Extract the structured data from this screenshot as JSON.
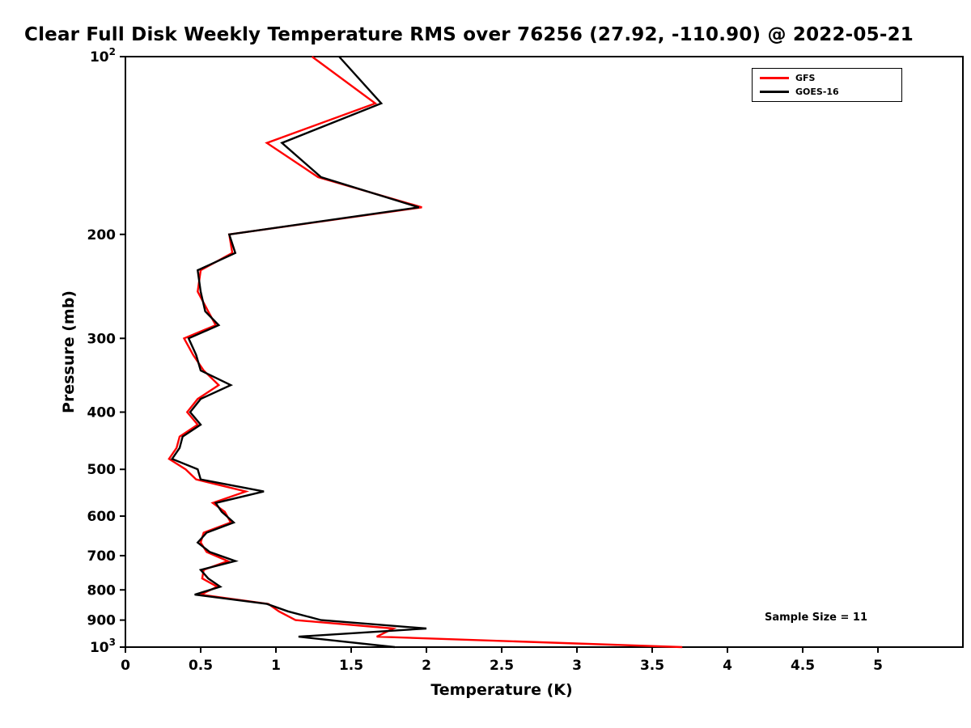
{
  "chart_data": {
    "type": "line",
    "title": "Clear Full Disk Weekly Temperature RMS over 76256 (27.92, -110.90) @ 2022-05-21",
    "xlabel": "Temperature (K)",
    "ylabel": "Pressure (mb)",
    "xlim": [
      0,
      5.56
    ],
    "x_ticks": [
      0,
      0.5,
      1,
      1.5,
      2,
      2.5,
      3,
      3.5,
      4,
      4.5,
      5
    ],
    "yscale": "log",
    "y_axis_reversed": true,
    "ylim": [
      100,
      1000
    ],
    "y_ticks": [
      100,
      200,
      300,
      400,
      500,
      600,
      700,
      800,
      900,
      1000
    ],
    "y_tick_labels": [
      "10^2",
      "200",
      "300",
      "400",
      "500",
      "600",
      "700",
      "800",
      "900",
      "10^3"
    ],
    "grid": false,
    "legend_position": "top-right",
    "annotation": "Sample Size = 11",
    "pressure_mb": [
      100,
      120,
      140,
      160,
      180,
      200,
      215,
      230,
      250,
      270,
      285,
      300,
      320,
      340,
      360,
      380,
      400,
      420,
      440,
      460,
      480,
      500,
      520,
      545,
      570,
      590,
      615,
      640,
      665,
      690,
      715,
      740,
      765,
      790,
      815,
      845,
      870,
      900,
      930,
      960,
      1000
    ],
    "series": [
      {
        "name": "GFS",
        "color": "#ff0000",
        "values": [
          1.24,
          1.66,
          0.94,
          1.28,
          1.97,
          0.69,
          0.71,
          0.5,
          0.48,
          0.55,
          0.6,
          0.39,
          0.45,
          0.52,
          0.62,
          0.48,
          0.41,
          0.48,
          0.36,
          0.34,
          0.29,
          0.4,
          0.47,
          0.8,
          0.58,
          0.66,
          0.7,
          0.52,
          0.5,
          0.54,
          0.68,
          0.52,
          0.51,
          0.61,
          0.5,
          0.95,
          1.02,
          1.13,
          1.78,
          1.67,
          3.7
        ]
      },
      {
        "name": "GOES-16",
        "color": "#000000",
        "values": [
          1.42,
          1.7,
          1.04,
          1.3,
          1.95,
          0.69,
          0.73,
          0.48,
          0.5,
          0.53,
          0.62,
          0.42,
          0.47,
          0.5,
          0.7,
          0.5,
          0.43,
          0.5,
          0.38,
          0.36,
          0.31,
          0.48,
          0.5,
          0.92,
          0.6,
          0.64,
          0.72,
          0.54,
          0.48,
          0.56,
          0.73,
          0.5,
          0.55,
          0.63,
          0.46,
          0.94,
          1.08,
          1.3,
          2.0,
          1.15,
          1.79
        ]
      }
    ]
  }
}
